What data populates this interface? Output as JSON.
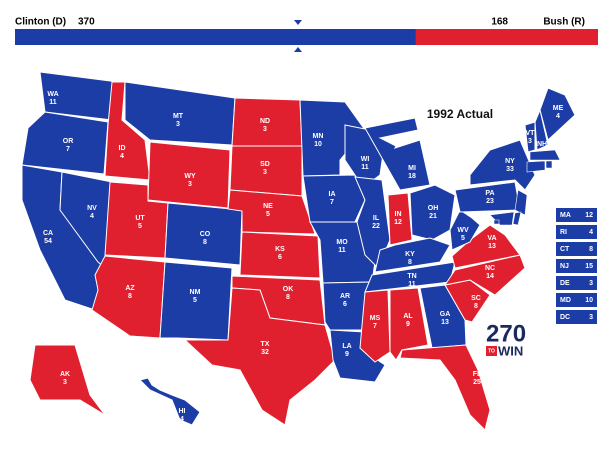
{
  "header": {
    "left": {
      "name": "Clinton (D)",
      "votes": 370,
      "party": "D",
      "color": "#1c3ca6"
    },
    "right": {
      "name": "Bush (R)",
      "votes": 168,
      "party": "R",
      "color": "#e0202e"
    }
  },
  "title": "1992 Actual",
  "states": [
    {
      "abbr": "WA",
      "votes": 11,
      "party": "D"
    },
    {
      "abbr": "OR",
      "votes": 7,
      "party": "D"
    },
    {
      "abbr": "CA",
      "votes": 54,
      "party": "D"
    },
    {
      "abbr": "NV",
      "votes": 4,
      "party": "D"
    },
    {
      "abbr": "ID",
      "votes": 4,
      "party": "R"
    },
    {
      "abbr": "MT",
      "votes": 3,
      "party": "D"
    },
    {
      "abbr": "WY",
      "votes": 3,
      "party": "R"
    },
    {
      "abbr": "UT",
      "votes": 5,
      "party": "R"
    },
    {
      "abbr": "CO",
      "votes": 8,
      "party": "D"
    },
    {
      "abbr": "AZ",
      "votes": 8,
      "party": "R"
    },
    {
      "abbr": "NM",
      "votes": 5,
      "party": "D"
    },
    {
      "abbr": "ND",
      "votes": 3,
      "party": "R"
    },
    {
      "abbr": "SD",
      "votes": 3,
      "party": "R"
    },
    {
      "abbr": "NE",
      "votes": 5,
      "party": "R"
    },
    {
      "abbr": "KS",
      "votes": 6,
      "party": "R"
    },
    {
      "abbr": "OK",
      "votes": 8,
      "party": "R"
    },
    {
      "abbr": "TX",
      "votes": 32,
      "party": "R"
    },
    {
      "abbr": "MN",
      "votes": 10,
      "party": "D"
    },
    {
      "abbr": "IA",
      "votes": 7,
      "party": "D"
    },
    {
      "abbr": "MO",
      "votes": 11,
      "party": "D"
    },
    {
      "abbr": "AR",
      "votes": 6,
      "party": "D"
    },
    {
      "abbr": "LA",
      "votes": 9,
      "party": "D"
    },
    {
      "abbr": "WI",
      "votes": 11,
      "party": "D"
    },
    {
      "abbr": "IL",
      "votes": 22,
      "party": "D"
    },
    {
      "abbr": "MI",
      "votes": 18,
      "party": "D"
    },
    {
      "abbr": "IN",
      "votes": 12,
      "party": "R"
    },
    {
      "abbr": "OH",
      "votes": 21,
      "party": "D"
    },
    {
      "abbr": "KY",
      "votes": 8,
      "party": "D"
    },
    {
      "abbr": "TN",
      "votes": 11,
      "party": "D"
    },
    {
      "abbr": "MS",
      "votes": 7,
      "party": "R"
    },
    {
      "abbr": "AL",
      "votes": 9,
      "party": "R"
    },
    {
      "abbr": "GA",
      "votes": 13,
      "party": "D"
    },
    {
      "abbr": "FL",
      "votes": 25,
      "party": "R"
    },
    {
      "abbr": "SC",
      "votes": 8,
      "party": "R"
    },
    {
      "abbr": "NC",
      "votes": 14,
      "party": "R"
    },
    {
      "abbr": "VA",
      "votes": 13,
      "party": "R"
    },
    {
      "abbr": "WV",
      "votes": 5,
      "party": "D"
    },
    {
      "abbr": "PA",
      "votes": 23,
      "party": "D"
    },
    {
      "abbr": "NY",
      "votes": 33,
      "party": "D"
    },
    {
      "abbr": "VT",
      "votes": 3,
      "party": "D"
    },
    {
      "abbr": "NH",
      "votes": 4,
      "party": "D"
    },
    {
      "abbr": "ME",
      "votes": 4,
      "party": "D"
    },
    {
      "abbr": "AK",
      "votes": 3,
      "party": "R"
    },
    {
      "abbr": "HI",
      "votes": 4,
      "party": "D"
    }
  ],
  "small_states": [
    {
      "abbr": "MA",
      "votes": 12,
      "party": "D"
    },
    {
      "abbr": "RI",
      "votes": 4,
      "party": "D"
    },
    {
      "abbr": "CT",
      "votes": 8,
      "party": "D"
    },
    {
      "abbr": "NJ",
      "votes": 15,
      "party": "D"
    },
    {
      "abbr": "DE",
      "votes": 3,
      "party": "D"
    },
    {
      "abbr": "MD",
      "votes": 10,
      "party": "D"
    },
    {
      "abbr": "DC",
      "votes": 3,
      "party": "D"
    }
  ],
  "logo": {
    "number": "270",
    "small": "TO",
    "word": "WIN"
  }
}
